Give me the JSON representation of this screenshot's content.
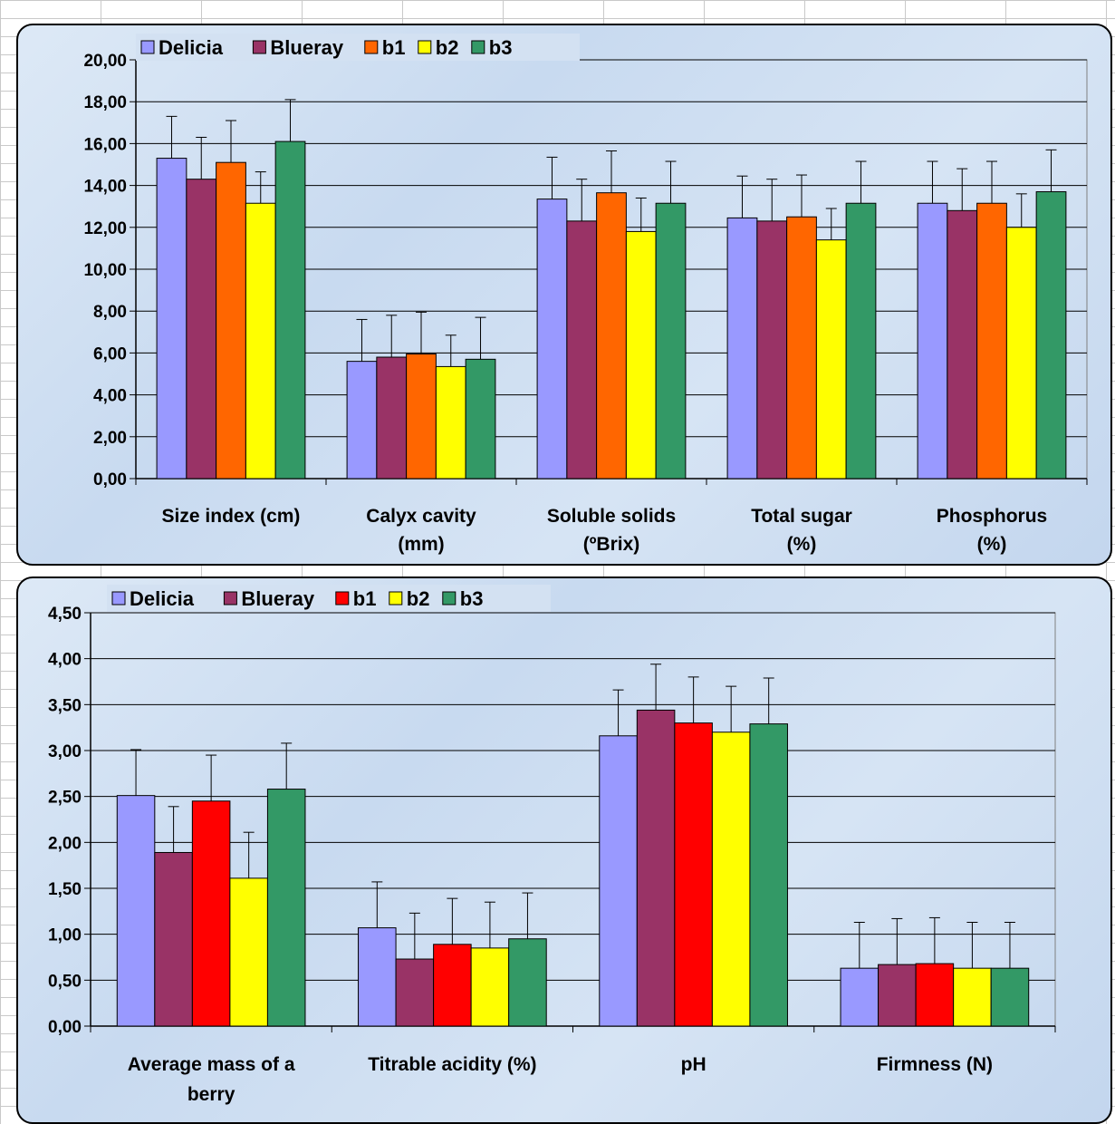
{
  "chart_data": [
    {
      "type": "bar",
      "ylim": [
        0,
        20
      ],
      "ytick_step": 2,
      "yticks": [
        "0,00",
        "2,00",
        "4,00",
        "6,00",
        "8,00",
        "10,00",
        "12,00",
        "14,00",
        "16,00",
        "18,00",
        "20,00"
      ],
      "legend_position": "top-left",
      "grid": true,
      "categories": [
        [
          "Size index (cm)"
        ],
        [
          "Calyx cavity",
          "(mm)"
        ],
        [
          "Soluble solids",
          "(ºBrix)"
        ],
        [
          "Total sugar",
          "(%)"
        ],
        [
          "Phosphorus",
          "(%)"
        ]
      ],
      "series": [
        {
          "name": "Delicia",
          "color": "#9999ff",
          "values": [
            15.3,
            5.6,
            13.35,
            12.45,
            13.15
          ],
          "error": [
            2.0,
            2.0,
            2.0,
            2.0,
            2.0
          ]
        },
        {
          "name": "Blueray",
          "color": "#993366",
          "values": [
            14.3,
            5.8,
            12.3,
            12.3,
            12.8
          ],
          "error": [
            2.0,
            2.0,
            2.0,
            2.0,
            2.0
          ]
        },
        {
          "name": "b1",
          "color": "#ff6600",
          "values": [
            15.1,
            5.95,
            13.65,
            12.5,
            13.15
          ],
          "error": [
            2.0,
            2.0,
            2.0,
            2.0,
            2.0
          ]
        },
        {
          "name": "b2",
          "color": "#ffff00",
          "values": [
            13.15,
            5.35,
            11.8,
            11.4,
            12.0
          ],
          "error": [
            1.5,
            1.5,
            1.6,
            1.5,
            1.6
          ]
        },
        {
          "name": "b3",
          "color": "#339966",
          "values": [
            16.1,
            5.7,
            13.15,
            13.15,
            13.7
          ],
          "error": [
            2.0,
            2.0,
            2.0,
            2.0,
            2.0
          ]
        }
      ]
    },
    {
      "type": "bar",
      "ylim": [
        0,
        4.5
      ],
      "ytick_step": 0.5,
      "yticks": [
        "0,00",
        "0,50",
        "1,00",
        "1,50",
        "2,00",
        "2,50",
        "3,00",
        "3,50",
        "4,00",
        "4,50"
      ],
      "legend_position": "top-left",
      "grid": true,
      "categories": [
        [
          "Average mass of a",
          "berry"
        ],
        [
          "Titrable acidity (%)"
        ],
        [
          "pH"
        ],
        [
          "Firmness (N)"
        ]
      ],
      "series": [
        {
          "name": "Delicia",
          "color": "#9999ff",
          "values": [
            2.51,
            1.07,
            3.16,
            0.63
          ],
          "error": [
            0.5,
            0.5,
            0.5,
            0.5
          ]
        },
        {
          "name": "Blueray",
          "color": "#993366",
          "values": [
            1.89,
            0.73,
            3.44,
            0.67
          ],
          "error": [
            0.5,
            0.5,
            0.5,
            0.5
          ]
        },
        {
          "name": "b1",
          "color": "#ff0000",
          "values": [
            2.45,
            0.89,
            3.3,
            0.68
          ],
          "error": [
            0.5,
            0.5,
            0.5,
            0.5
          ]
        },
        {
          "name": "b2",
          "color": "#ffff00",
          "values": [
            1.61,
            0.85,
            3.2,
            0.63
          ],
          "error": [
            0.5,
            0.5,
            0.5,
            0.5
          ]
        },
        {
          "name": "b3",
          "color": "#339966",
          "values": [
            2.58,
            0.95,
            3.29,
            0.63
          ],
          "error": [
            0.5,
            0.5,
            0.5,
            0.5
          ]
        }
      ]
    }
  ]
}
